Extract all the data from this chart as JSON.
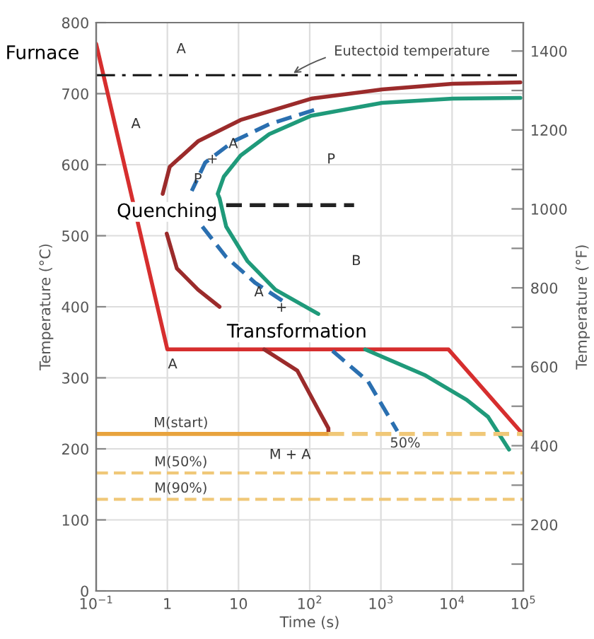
{
  "chart_data": {
    "type": "line",
    "xlabel": "Time (s)",
    "ylabel": "Temperature (°C)",
    "y2label": "Temperature (°F)",
    "log": "x",
    "grid": true,
    "marker": "none",
    "xlim": [
      0.1,
      100000
    ],
    "xticks": [
      {
        "value": 0.1,
        "label": "10$^{−1}$"
      },
      1,
      10,
      {
        "value": 100,
        "label": "10$^{2}$"
      },
      {
        "value": 1000,
        "label": "10$^{3}$"
      },
      {
        "value": 10000,
        "label": "10$^{4}$"
      },
      {
        "value": 100000,
        "label": "10$^{5}$"
      }
    ],
    "ylim": [
      0,
      800
    ],
    "yticks": [
      0,
      100,
      200,
      300,
      400,
      500,
      600,
      700,
      800
    ],
    "y2lim": [
      32,
      1472
    ],
    "y2ticks": [
      {
        "value": 100,
        "label": null
      },
      200,
      {
        "value": 300,
        "label": null
      },
      400,
      {
        "value": 500,
        "label": null
      },
      600,
      {
        "value": 700,
        "label": null
      },
      800,
      {
        "value": 900,
        "label": null
      },
      1000,
      {
        "value": 1100,
        "label": null
      },
      1200,
      {
        "value": 1300,
        "label": null
      },
      1400
    ],
    "series": [
      {
        "color": "#d62e2e",
        "line_style": "solid",
        "x": [
          0.1,
          1,
          8900,
          100000
        ],
        "values": [
          770,
          340,
          340,
          220
        ]
      },
      {
        "color": "#9b2b2b",
        "line_style": "solid",
        "x": [
          91000,
          10200,
          1040,
          105,
          10.7,
          2.7,
          1.08,
          0.86,
          0.9,
          0.98,
          1.36,
          2.7,
          5.4,
          12,
          23,
          67,
          132,
          183,
          183
        ],
        "values": [
          716,
          714,
          706,
          693,
          663,
          633,
          597,
          559,
          null,
          503,
          454,
          424,
          400,
          null,
          340,
          310,
          255,
          229,
          223
        ]
      },
      {
        "color": "#1f9a7a",
        "line_style": "solid",
        "x": [
          91000,
          10200,
          1040,
          105,
          27,
          10.7,
          6.2,
          5.1,
          5.4,
          6.7,
          13.4,
          33,
          132,
          250,
          600,
          4100,
          16000,
          32000,
          63000
        ],
        "values": [
          694,
          693,
          687,
          669,
          643,
          613,
          583,
          559,
          553,
          513,
          464,
          424,
          390,
          null,
          340,
          304,
          269,
          245,
          199
        ]
      },
      {
        "color": "#2a6fb0",
        "line_style": "dashed",
        "x": [
          115,
          27,
          8.5,
          3.4,
          2.2,
          2.5,
          3.1,
          6.7,
          17,
          42,
          100,
          209,
          660,
          1700
        ],
        "values": [
          677,
          657,
          633,
          603,
          563,
          null,
          513,
          470,
          434,
          408,
          null,
          338,
          295,
          225
        ]
      },
      {
        "color": "#222222",
        "line_style": "dashed",
        "x": [
          6.7,
          420
        ],
        "values": [
          543,
          543
        ]
      },
      {
        "color": "#e8a33d",
        "line_style": "solid",
        "x": [
          0.1,
          183
        ],
        "values": [
          221,
          221
        ]
      },
      {
        "color": "#f0c878",
        "line_style": "dashed",
        "x": [
          183,
          100000
        ],
        "values": [
          221,
          221
        ]
      }
    ],
    "ref_lines": [
      {
        "axis": "y",
        "value": 726,
        "color": "#222222",
        "line_style": "dashdot"
      },
      {
        "axis": "y",
        "value": 166,
        "color": "#f0c878",
        "line_style": "dashed"
      },
      {
        "axis": "y",
        "value": 129,
        "color": "#f0c878",
        "line_style": "dashed"
      }
    ],
    "annotations": [
      "Furnace",
      "A",
      "A",
      "P",
      "+",
      "A",
      "P",
      "Quenching",
      "B",
      "A",
      "+",
      "Transformation",
      "A",
      {
        "text": "M(start)",
        "x": 1.55,
        "y": 221
      },
      "M + A",
      {
        "text": "50%",
        "x": 1700,
        "y": 225
      },
      {
        "text": "M(50%)",
        "x": 1.55,
        "y": 166
      },
      {
        "text": "M(90%)",
        "x": 1.55,
        "y": 129
      },
      {
        "text": "Eutectoid temperature",
        "x": 53,
        "y": 726
      }
    ]
  }
}
